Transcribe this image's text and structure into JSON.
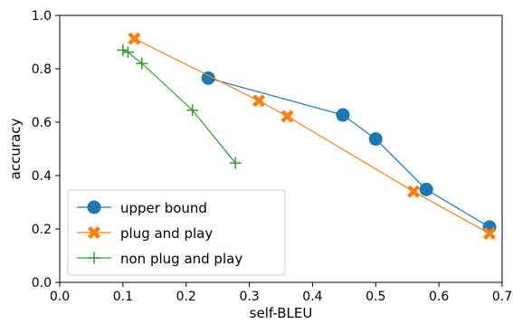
{
  "chart_data": {
    "type": "line",
    "xlabel": "self-BLEU",
    "ylabel": "accuracy",
    "xlim": [
      0.0,
      0.7
    ],
    "ylim": [
      0.0,
      1.0
    ],
    "x_ticks": [
      "0.0",
      "0.1",
      "0.2",
      "0.3",
      "0.4",
      "0.5",
      "0.6",
      "0.7"
    ],
    "y_ticks": [
      "0.0",
      "0.2",
      "0.4",
      "0.6",
      "0.8",
      "1.0"
    ],
    "grid": false,
    "legend_position": "bottom-left",
    "series": [
      {
        "name": "upper bound",
        "color": "#1f77b4",
        "marker": "circle",
        "points": [
          {
            "x": 0.235,
            "y": 0.765
          },
          {
            "x": 0.448,
            "y": 0.627
          },
          {
            "x": 0.5,
            "y": 0.537
          },
          {
            "x": 0.58,
            "y": 0.348
          },
          {
            "x": 0.68,
            "y": 0.207
          }
        ]
      },
      {
        "name": "plug and play",
        "color": "#ff7f0e",
        "marker": "x",
        "points": [
          {
            "x": 0.118,
            "y": 0.913
          },
          {
            "x": 0.315,
            "y": 0.68
          },
          {
            "x": 0.36,
            "y": 0.622
          },
          {
            "x": 0.56,
            "y": 0.34
          },
          {
            "x": 0.68,
            "y": 0.183
          }
        ]
      },
      {
        "name": "non plug and play",
        "color": "#2ca02c",
        "marker": "plus",
        "points": [
          {
            "x": 0.1,
            "y": 0.87
          },
          {
            "x": 0.108,
            "y": 0.862
          },
          {
            "x": 0.13,
            "y": 0.82
          },
          {
            "x": 0.21,
            "y": 0.645
          },
          {
            "x": 0.278,
            "y": 0.447
          }
        ]
      }
    ]
  }
}
